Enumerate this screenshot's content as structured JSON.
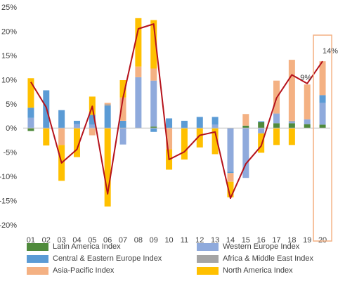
{
  "chart_data": {
    "type": "bar",
    "stacked": true,
    "categories": [
      "01",
      "02",
      "03",
      "04",
      "05",
      "06",
      "07",
      "08",
      "09",
      "10",
      "11",
      "12",
      "13",
      "14",
      "15",
      "16",
      "17",
      "18",
      "19",
      "20"
    ],
    "ylim": [
      -20,
      25
    ],
    "yticks": [
      -20,
      -15,
      -10,
      -5,
      0,
      5,
      10,
      15,
      20,
      25
    ],
    "ytick_labels": [
      "-20%",
      "-15%",
      "-10%",
      "-5%",
      "0%",
      "5%",
      "10%",
      "15%",
      "20%",
      "25%"
    ],
    "grid": false,
    "legend_position": "bottom",
    "series": [
      {
        "name": "Latin America Index",
        "color": "#4f8a3c",
        "values": [
          -0.6,
          0,
          0,
          0,
          0,
          0,
          0,
          0,
          0.3,
          0,
          0,
          0,
          0,
          0,
          0.5,
          1.2,
          1.0,
          1.0,
          0.8,
          0.7
        ]
      },
      {
        "name": "Western Europe Index",
        "color": "#8faadc",
        "values": [
          2.1,
          0,
          0,
          0.8,
          0.7,
          0,
          -3.4,
          10.5,
          9.5,
          0,
          0,
          0,
          0.7,
          -9.0,
          -10.3,
          -1.1,
          2.0,
          0.3,
          1.0,
          4.5
        ]
      },
      {
        "name": "Central & Eastern Europe Index",
        "color": "#5b9bd5",
        "values": [
          2.1,
          7.8,
          3.7,
          0.7,
          2.0,
          4.6,
          1.5,
          0,
          -0.8,
          2.0,
          1.5,
          2.3,
          1.6,
          -0.3,
          0,
          0.2,
          0,
          0,
          0,
          1.6
        ]
      },
      {
        "name": "Africa & Middle East Index",
        "color": "#a5a5a5",
        "values": [
          0,
          0,
          0,
          0,
          0,
          0.3,
          0,
          0,
          0,
          0,
          0,
          0,
          0,
          0,
          0,
          0,
          0,
          0.2,
          0,
          0
        ]
      },
      {
        "name": "Asia-Pacific Index",
        "color": "#f4b183",
        "values": [
          0,
          0,
          -3.5,
          0,
          -1.5,
          0.3,
          4.8,
          2.2,
          2.5,
          -4.4,
          0,
          0,
          0,
          -1.8,
          2.4,
          0,
          6.8,
          12.6,
          7.2,
          7.0
        ]
      },
      {
        "name": "North America Index",
        "color": "#ffc000",
        "values": [
          6.1,
          -3.6,
          -7.4,
          -6.0,
          3.8,
          -16.2,
          3.6,
          10.0,
          10.0,
          -4.2,
          -6.5,
          -4.0,
          -5.4,
          -3.2,
          0,
          -4.0,
          -3.5,
          -3.5,
          0,
          0
        ]
      },
      {
        "name": "Total",
        "type": "line",
        "color": "#b5121b",
        "values": [
          9.5,
          4.3,
          -7.2,
          -4.4,
          4.5,
          -13.6,
          6.2,
          20.5,
          21.5,
          -6.5,
          -4.9,
          -1.5,
          -0.8,
          -14.5,
          -7.4,
          -3.7,
          6.2,
          11.0,
          9.2,
          13.8
        ]
      }
    ],
    "annotations": [
      {
        "category": "19",
        "text": "9%"
      },
      {
        "category": "20",
        "text": "14%"
      }
    ],
    "highlight": {
      "category": "20",
      "color": "#f4b183"
    }
  },
  "legend": [
    {
      "label": "Latin America Index",
      "color": "#4f8a3c"
    },
    {
      "label": "Western Europe Index",
      "color": "#8faadc"
    },
    {
      "label": "Central & Eastern Europe Index",
      "color": "#5b9bd5"
    },
    {
      "label": "Africa & Middle East Index",
      "color": "#a5a5a5"
    },
    {
      "label": "Asia-Pacific Index",
      "color": "#f4b183"
    },
    {
      "label": "North America Index",
      "color": "#ffc000"
    }
  ]
}
